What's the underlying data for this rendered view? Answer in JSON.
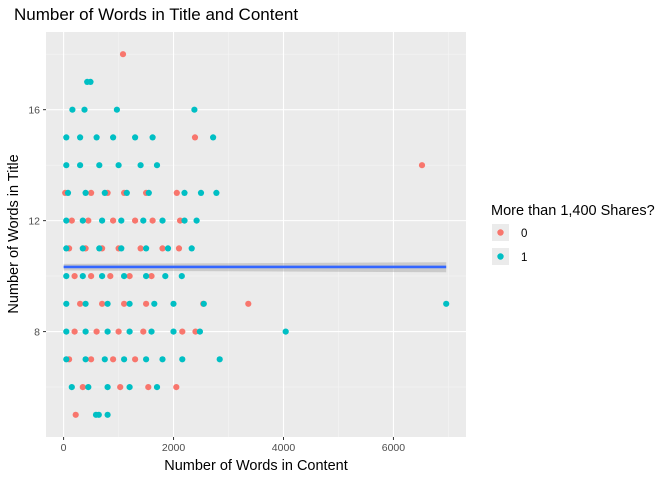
{
  "chart_data": {
    "type": "scatter",
    "title": "Number of Words in Title and Content",
    "xlabel": "Number of Words in Content",
    "ylabel": "Number of Words in Title",
    "xlim": [
      -320,
      7320
    ],
    "ylim": [
      4.2,
      18.8
    ],
    "xticks": [
      0,
      2000,
      4000,
      6000
    ],
    "xtick_labels": [
      "0",
      "2000",
      "4000",
      "6000"
    ],
    "yticks": [
      8,
      12,
      16
    ],
    "ytick_labels": [
      "8",
      "12",
      "16"
    ],
    "grid": true,
    "legend": {
      "title": "More than 1,400 Shares?",
      "placement": "right",
      "entries": [
        {
          "label": "0",
          "color": "#F8766D"
        },
        {
          "label": "1",
          "color": "#00BFC4"
        }
      ]
    },
    "colors": {
      "panel_background": "#EBEBEB",
      "grid_major": "#FFFFFF",
      "series_0": "#F8766D",
      "series_1": "#00BFC4",
      "trend_line": "#3366FF",
      "trend_band": "#999999"
    },
    "series": [
      {
        "name": "0",
        "color": "#F8766D",
        "points": [
          [
            1080,
            18
          ],
          [
            2390,
            15
          ],
          [
            6520,
            14
          ],
          [
            30,
            13
          ],
          [
            500,
            13
          ],
          [
            800,
            13
          ],
          [
            1100,
            13
          ],
          [
            1500,
            13
          ],
          [
            2060,
            13
          ],
          [
            150,
            12
          ],
          [
            450,
            12
          ],
          [
            900,
            12
          ],
          [
            1300,
            12
          ],
          [
            1620,
            12
          ],
          [
            2120,
            12
          ],
          [
            100,
            11
          ],
          [
            400,
            11
          ],
          [
            700,
            11
          ],
          [
            1000,
            11
          ],
          [
            1400,
            11
          ],
          [
            1800,
            11
          ],
          [
            2100,
            11
          ],
          [
            200,
            10
          ],
          [
            500,
            10
          ],
          [
            850,
            10
          ],
          [
            1200,
            10
          ],
          [
            1600,
            10
          ],
          [
            2540,
            9
          ],
          [
            3360,
            9
          ],
          [
            300,
            9
          ],
          [
            700,
            9
          ],
          [
            1100,
            9
          ],
          [
            1500,
            9
          ],
          [
            2160,
            8
          ],
          [
            2400,
            8
          ],
          [
            200,
            8
          ],
          [
            600,
            8
          ],
          [
            1000,
            8
          ],
          [
            1450,
            8
          ],
          [
            100,
            7
          ],
          [
            500,
            7
          ],
          [
            900,
            7
          ],
          [
            1300,
            7
          ],
          [
            2050,
            6
          ],
          [
            1540,
            6
          ],
          [
            1030,
            6
          ],
          [
            350,
            6
          ],
          [
            220,
            5
          ]
        ]
      },
      {
        "name": "1",
        "color": "#00BFC4",
        "points": [
          [
            430,
            17
          ],
          [
            490,
            17
          ],
          [
            160,
            16
          ],
          [
            380,
            16
          ],
          [
            970,
            16
          ],
          [
            2380,
            16
          ],
          [
            50,
            15
          ],
          [
            300,
            15
          ],
          [
            600,
            15
          ],
          [
            900,
            15
          ],
          [
            1300,
            15
          ],
          [
            1620,
            15
          ],
          [
            2720,
            15
          ],
          [
            50,
            14
          ],
          [
            300,
            14
          ],
          [
            650,
            14
          ],
          [
            1000,
            14
          ],
          [
            1400,
            14
          ],
          [
            1700,
            14
          ],
          [
            80,
            13
          ],
          [
            400,
            13
          ],
          [
            750,
            13
          ],
          [
            1150,
            13
          ],
          [
            1550,
            13
          ],
          [
            2200,
            13
          ],
          [
            2500,
            13
          ],
          [
            2780,
            13
          ],
          [
            50,
            12
          ],
          [
            350,
            12
          ],
          [
            700,
            12
          ],
          [
            1050,
            12
          ],
          [
            1450,
            12
          ],
          [
            1800,
            12
          ],
          [
            2200,
            12
          ],
          [
            2420,
            12
          ],
          [
            50,
            11
          ],
          [
            350,
            11
          ],
          [
            650,
            11
          ],
          [
            1050,
            11
          ],
          [
            1500,
            11
          ],
          [
            1900,
            11
          ],
          [
            2330,
            11
          ],
          [
            50,
            10
          ],
          [
            350,
            10
          ],
          [
            700,
            10
          ],
          [
            1100,
            10
          ],
          [
            1500,
            10
          ],
          [
            1850,
            10
          ],
          [
            2150,
            10
          ],
          [
            50,
            9
          ],
          [
            400,
            9
          ],
          [
            800,
            9
          ],
          [
            1200,
            9
          ],
          [
            1650,
            9
          ],
          [
            2000,
            9
          ],
          [
            2550,
            9
          ],
          [
            6960,
            9
          ],
          [
            50,
            8
          ],
          [
            400,
            8
          ],
          [
            800,
            8
          ],
          [
            1200,
            8
          ],
          [
            1600,
            8
          ],
          [
            2000,
            8
          ],
          [
            2480,
            8
          ],
          [
            4040,
            8
          ],
          [
            50,
            7
          ],
          [
            400,
            7
          ],
          [
            750,
            7
          ],
          [
            1100,
            7
          ],
          [
            1500,
            7
          ],
          [
            1800,
            7
          ],
          [
            2160,
            7
          ],
          [
            2840,
            7
          ],
          [
            150,
            6
          ],
          [
            450,
            6
          ],
          [
            800,
            6
          ],
          [
            1200,
            6
          ],
          [
            1700,
            6
          ],
          [
            590,
            5
          ],
          [
            640,
            5
          ],
          [
            800,
            5
          ]
        ]
      }
    ],
    "trend": {
      "method": "linear",
      "x": [
        0,
        6960
      ],
      "y": [
        10.33,
        10.33
      ],
      "se_band": [
        [
          0,
          10.2,
          10.44
        ],
        [
          6960,
          10.14,
          10.5
        ]
      ]
    }
  }
}
